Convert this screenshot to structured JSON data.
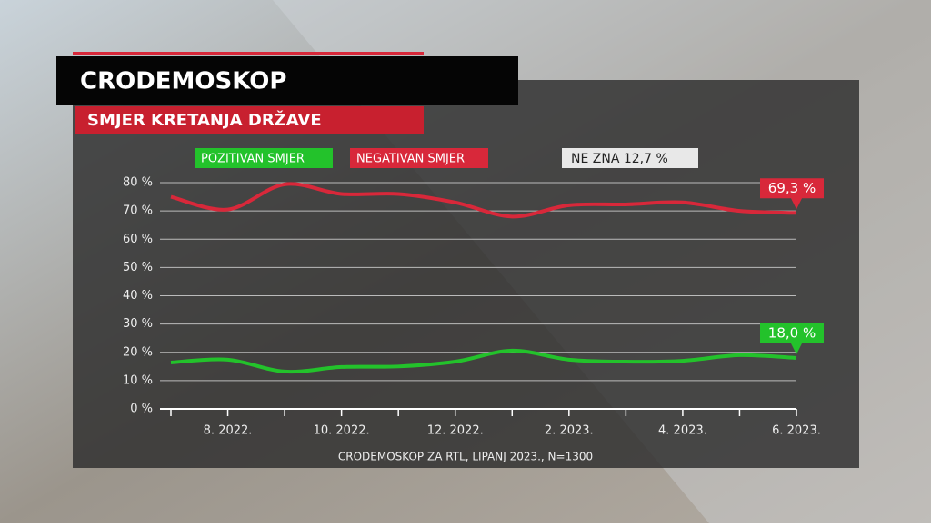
{
  "chart_data": {
    "type": "line",
    "title": "CRODEMOSKOP",
    "subtitle": "SMJER KRETANJA DRŽAVE",
    "annotation": "NE ZNA 12,7 %",
    "source": "CRODEMOSKOP ZA RTL, LIPANJ 2023., N=1300",
    "categories": [
      null,
      "8. 2022.",
      null,
      "10. 2022.",
      null,
      "12. 2022.",
      null,
      "2. 2023.",
      null,
      "4. 2023.",
      null,
      "6. 2023."
    ],
    "series": [
      {
        "name": "POZITIVAN SMJER",
        "color": "#23c22b",
        "values": [
          16.4,
          17.4,
          13.2,
          14.8,
          15,
          16.7,
          20.6,
          17.4,
          16.7,
          17,
          19,
          18.0
        ],
        "value_labels": [
          null,
          null,
          null,
          null,
          null,
          null,
          null,
          null,
          null,
          null,
          null,
          "18,0 %"
        ]
      },
      {
        "name": "NEGATIVAN SMJER",
        "color": "#d8283a",
        "values": [
          75,
          70.5,
          79.4,
          76,
          76,
          73,
          68,
          72,
          72.3,
          73,
          70,
          69.3
        ],
        "value_labels": [
          null,
          null,
          null,
          null,
          null,
          null,
          null,
          null,
          null,
          null,
          null,
          "69,3 %"
        ]
      }
    ],
    "ylim": [
      0,
      80
    ],
    "yticks": [
      {
        "value": 0,
        "label": "0 %"
      },
      {
        "value": 10,
        "label": "10 %"
      },
      {
        "value": 20,
        "label": "20 %"
      },
      {
        "value": 30,
        "label": "30 %"
      },
      {
        "value": 40,
        "label": "40 %"
      },
      {
        "value": 50,
        "label": "50 %"
      },
      {
        "value": 60,
        "label": "60 %"
      },
      {
        "value": 70,
        "label": "70 %"
      },
      {
        "value": 80,
        "label": "80 %"
      }
    ],
    "grid": true
  }
}
